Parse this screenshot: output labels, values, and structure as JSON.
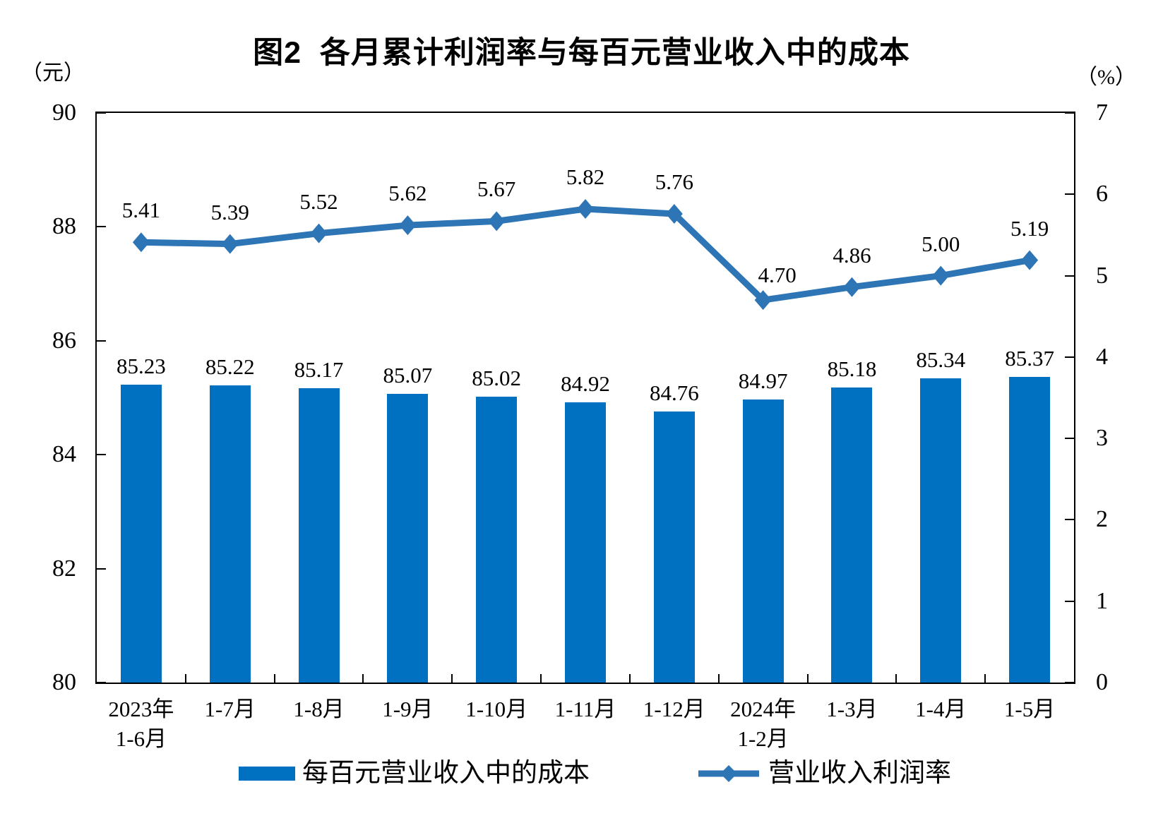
{
  "chart_data": {
    "type": "combo-bar-line",
    "title": "图2  各月累计利润率与每百元营业收入中的成本",
    "categories": [
      [
        "2023年",
        "1-6月"
      ],
      [
        "1-7月"
      ],
      [
        "1-8月"
      ],
      [
        "1-9月"
      ],
      [
        "1-10月"
      ],
      [
        "1-11月"
      ],
      [
        "1-12月"
      ],
      [
        "2024年",
        "1-2月"
      ],
      [
        "1-3月"
      ],
      [
        "1-4月"
      ],
      [
        "1-5月"
      ]
    ],
    "series": [
      {
        "name": "每百元营业收入中的成本",
        "type": "bar",
        "axis": "left",
        "color": "#0070C0",
        "values": [
          85.23,
          85.22,
          85.17,
          85.07,
          85.02,
          84.92,
          84.76,
          84.97,
          85.18,
          85.34,
          85.37
        ]
      },
      {
        "name": "营业收入利润率",
        "type": "line",
        "axis": "right",
        "color": "#2E75B6",
        "marker": "diamond",
        "values": [
          5.41,
          5.39,
          5.52,
          5.62,
          5.67,
          5.82,
          5.76,
          4.7,
          4.86,
          5.0,
          5.19
        ]
      }
    ],
    "left_axis": {
      "unit": "（元）",
      "min": 80,
      "max": 90,
      "ticks": [
        90,
        88,
        86,
        84,
        82,
        80
      ]
    },
    "right_axis": {
      "unit": "（%）",
      "min": 0,
      "max": 7,
      "ticks": [
        7,
        6,
        5,
        4,
        3,
        2,
        1,
        0
      ]
    },
    "grid": false,
    "data_labels": true,
    "label_decimals": 2,
    "legend_position": "bottom"
  }
}
